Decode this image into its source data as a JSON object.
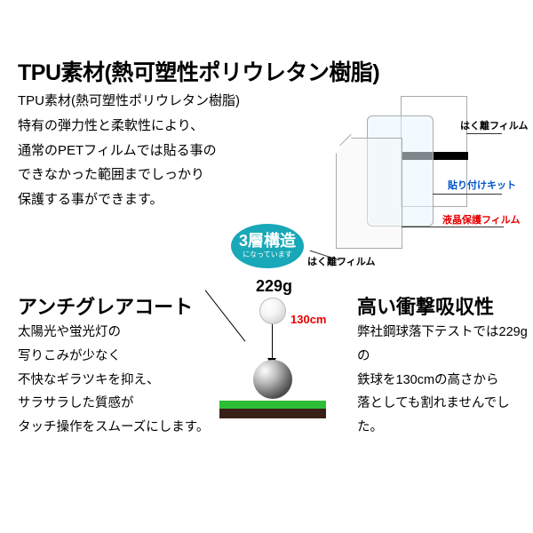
{
  "main": {
    "title": "TPU素材(熱可塑性ポリウレタン樹脂)",
    "desc_l1": "TPU素材(熱可塑性ポリウレタン樹脂)",
    "desc_l2": "特有の弾力性と柔軟性により、",
    "desc_l3": "通常のPETフィルムでは貼る事の",
    "desc_l4": "できなかった範囲までしっかり",
    "desc_l5": "保護する事ができます。"
  },
  "badge": {
    "main": "3層構造",
    "sub": "になっています"
  },
  "films": {
    "hakuri1": "はく離フィルム",
    "kit": "貼り付けキット",
    "lcd": "液晶保護フィルム",
    "hakuri2": "はく離フィルム"
  },
  "left": {
    "title": "アンチグレアコート",
    "l1": "太陽光や蛍光灯の",
    "l2": "写りこみが少なく",
    "l3": "不快なギラツキを抑え、",
    "l4": "サラサラした質感が",
    "l5": "タッチ操作をスムーズにします。"
  },
  "right": {
    "title": "高い衝撃吸収性",
    "l1": "弊社鋼球落下テストでは229gの",
    "l2": "鉄球を130cmの高さから",
    "l3": "落としても割れませんでした。"
  },
  "drop": {
    "weight": "229g",
    "height": "130cm"
  },
  "colors": {
    "badge_bg": "#18a8b8",
    "kit_color": "#0055cc",
    "lcd_color": "#e60000",
    "height_color": "#e60000",
    "platform_green": "#2dbd37",
    "platform_dark": "#382018"
  }
}
